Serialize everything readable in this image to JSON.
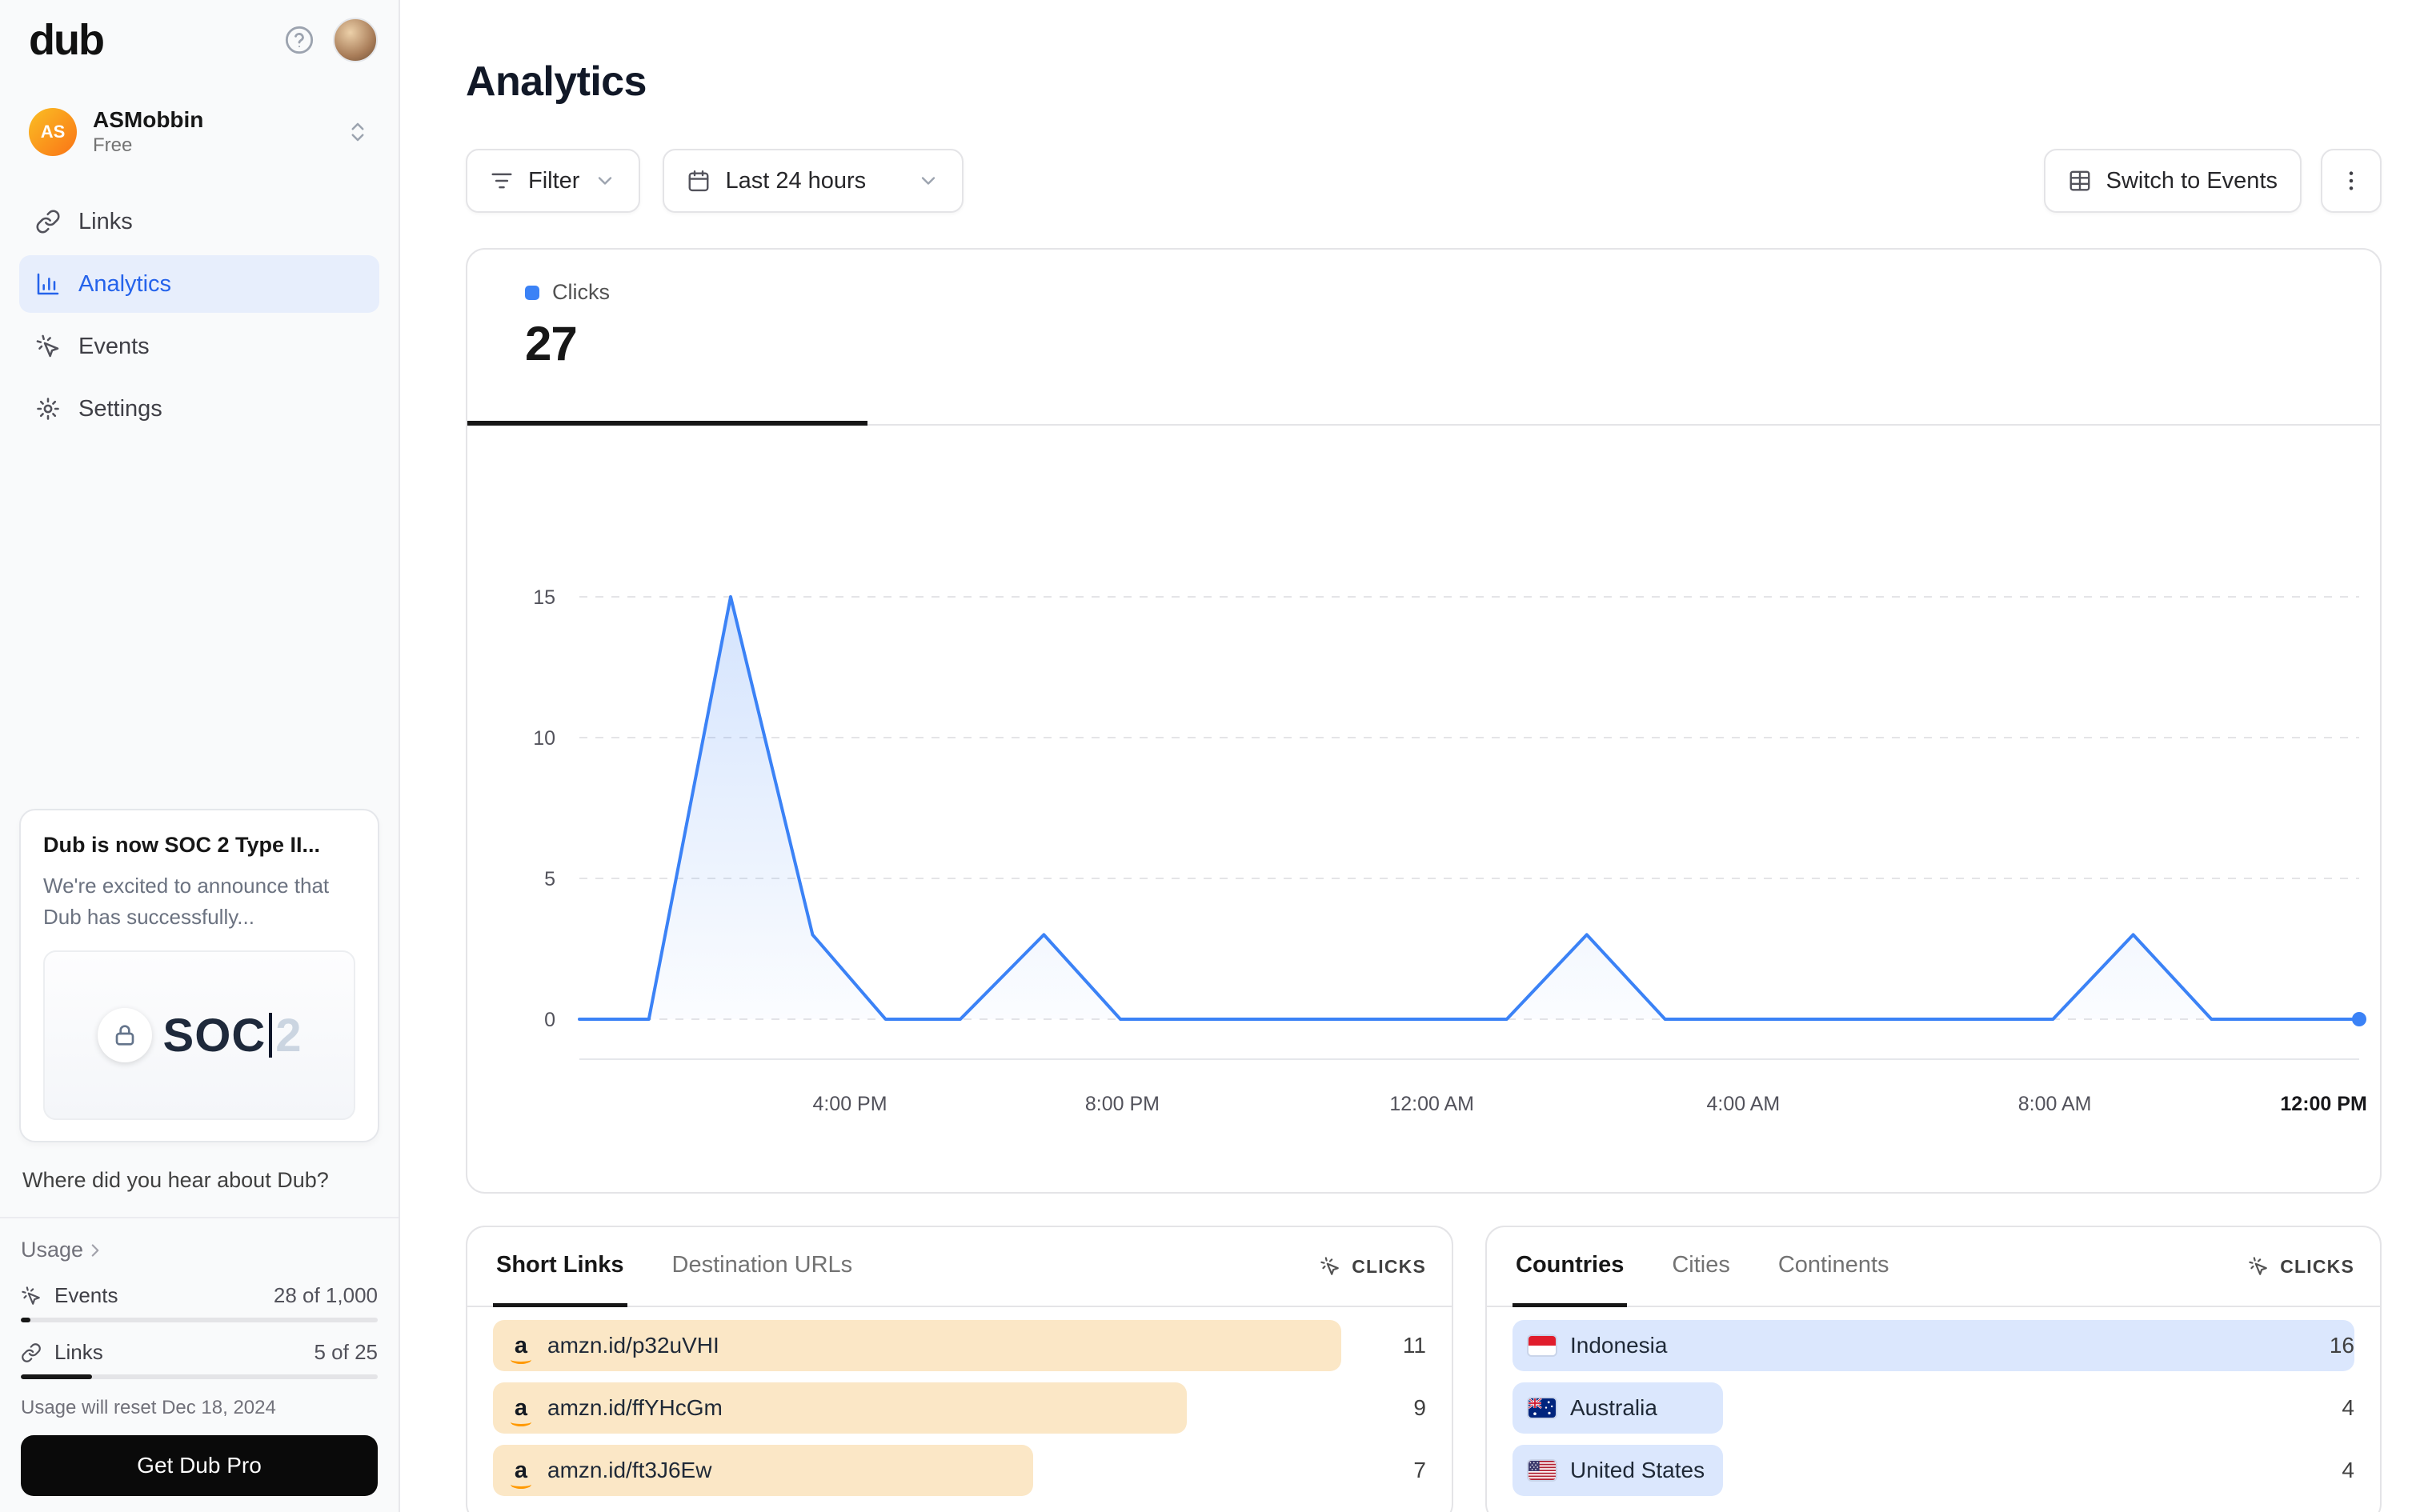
{
  "sidebar": {
    "logo": "dub",
    "workspace": {
      "initials": "AS",
      "name": "ASMobbin",
      "plan": "Free"
    },
    "nav": [
      {
        "label": "Links"
      },
      {
        "label": "Analytics"
      },
      {
        "label": "Events"
      },
      {
        "label": "Settings"
      }
    ],
    "promo_card": {
      "title": "Dub is now SOC 2 Type II...",
      "body": "We're excited to announce that Dub has successfully...",
      "badge_text": "SOC",
      "badge_text_faded": "2"
    },
    "question": "Where did you hear about Dub?",
    "usage": {
      "title": "Usage",
      "events_label": "Events",
      "events_value": "28 of 1,000",
      "events_pct": 2.8,
      "links_label": "Links",
      "links_value": "5 of 25",
      "links_pct": 20,
      "reset_note": "Usage will reset Dec 18, 2024",
      "cta": "Get Dub Pro"
    }
  },
  "header": {
    "title": "Analytics",
    "filter_label": "Filter",
    "date_range_label": "Last 24 hours",
    "switch_label": "Switch to Events"
  },
  "chart_card": {
    "metric_label": "Clicks",
    "metric_value": "27"
  },
  "chart_data": {
    "type": "area",
    "title": "Clicks over last 24 hours",
    "series_name": "Clicks",
    "total_clicks": 27,
    "ylim": [
      0,
      15
    ],
    "yticks": [
      0,
      5,
      10,
      15
    ],
    "grid": "dashed-horizontal",
    "line_color": "#3b82f6",
    "xticks": [
      {
        "label": "4:00 PM",
        "pos": 0.152
      },
      {
        "label": "8:00 PM",
        "pos": 0.305
      },
      {
        "label": "12:00 AM",
        "pos": 0.479
      },
      {
        "label": "4:00 AM",
        "pos": 0.654
      },
      {
        "label": "8:00 AM",
        "pos": 0.829
      },
      {
        "label": "12:00 PM",
        "pos": 0.98,
        "bold": true
      }
    ],
    "points": [
      [
        0,
        0
      ],
      [
        0.039,
        0
      ],
      [
        0.085,
        15
      ],
      [
        0.131,
        3
      ],
      [
        0.172,
        0
      ],
      [
        0.214,
        0
      ],
      [
        0.261,
        3
      ],
      [
        0.304,
        0
      ],
      [
        0.521,
        0
      ],
      [
        0.566,
        3
      ],
      [
        0.61,
        0
      ],
      [
        0.828,
        0
      ],
      [
        0.873,
        3
      ],
      [
        0.917,
        0
      ],
      [
        1,
        0
      ]
    ]
  },
  "short_links": {
    "tabs": [
      "Short Links",
      "Destination URLs"
    ],
    "active_tab": "Short Links",
    "clicks_label": "CLICKS",
    "bar_color": "#fbe7c6",
    "rows": [
      {
        "label": "amzn.id/p32uVHI",
        "value": 11
      },
      {
        "label": "amzn.id/ffYHcGm",
        "value": 9
      },
      {
        "label": "amzn.id/ft3J6Ew",
        "value": 7
      }
    ]
  },
  "countries": {
    "tabs": [
      "Countries",
      "Cities",
      "Continents"
    ],
    "active_tab": "Countries",
    "clicks_label": "CLICKS",
    "bar_color": "#dbe7fd",
    "rows": [
      {
        "label": "Indonesia",
        "flag": "indonesia-flag",
        "value": 16
      },
      {
        "label": "Australia",
        "flag": "australia-flag",
        "value": 4
      },
      {
        "label": "United States",
        "flag": "us-flag",
        "value": 4
      }
    ]
  }
}
